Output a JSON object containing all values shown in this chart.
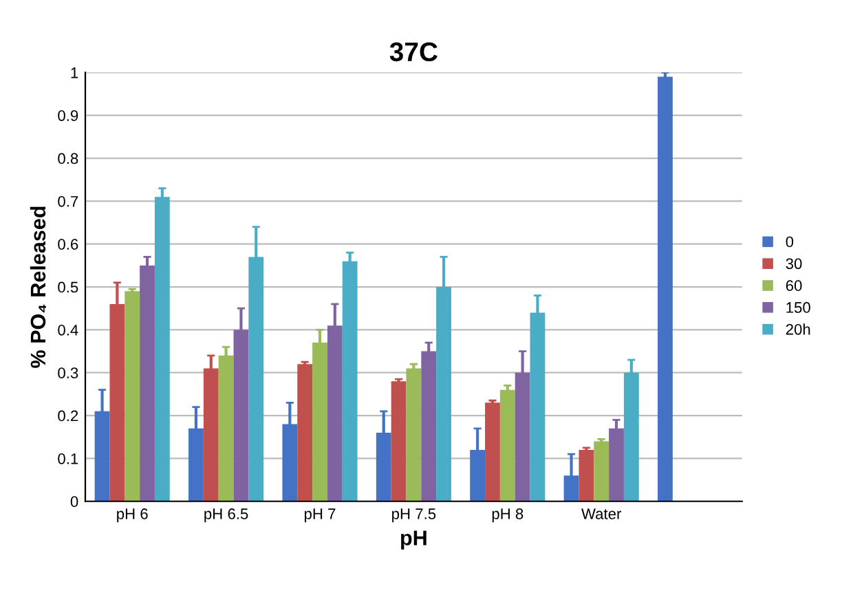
{
  "chart_data": {
    "type": "bar",
    "title": "37C",
    "xlabel": "pH",
    "ylabel": "% PO₄ Released",
    "categories": [
      "pH 6",
      "pH 6.5",
      "pH 7",
      "pH 7.5",
      "pH 8",
      "Water",
      null
    ],
    "series": [
      {
        "name": "0",
        "color": "#4472c4",
        "values": [
          0.21,
          0.17,
          0.18,
          0.16,
          0.12,
          0.06,
          0.99
        ],
        "errors": [
          0.05,
          0.05,
          0.05,
          0.05,
          0.05,
          0.05,
          0.01
        ]
      },
      {
        "name": "30",
        "color": "#c0504d",
        "values": [
          0.46,
          0.31,
          0.32,
          0.28,
          0.23,
          0.12,
          null
        ],
        "errors": [
          0.05,
          0.03,
          0.005,
          0.005,
          0.005,
          0.005,
          null
        ]
      },
      {
        "name": "60",
        "color": "#9bbb59",
        "values": [
          0.49,
          0.34,
          0.37,
          0.31,
          0.26,
          0.14,
          null
        ],
        "errors": [
          0.005,
          0.02,
          0.03,
          0.01,
          0.01,
          0.005,
          null
        ]
      },
      {
        "name": "150",
        "color": "#8064a2",
        "values": [
          0.55,
          0.4,
          0.41,
          0.35,
          0.3,
          0.17,
          null
        ],
        "errors": [
          0.02,
          0.05,
          0.05,
          0.02,
          0.05,
          0.02,
          null
        ]
      },
      {
        "name": "20h",
        "color": "#4bacc6",
        "values": [
          0.71,
          0.57,
          0.56,
          0.5,
          0.44,
          0.3,
          null
        ],
        "errors": [
          0.02,
          0.07,
          0.02,
          0.07,
          0.04,
          0.03,
          null
        ]
      }
    ],
    "ylim": [
      0,
      1
    ],
    "yticks": [
      0,
      0.1,
      0.2,
      0.3,
      0.4,
      0.5,
      0.6,
      0.7,
      0.8,
      0.9,
      1
    ],
    "grid": "y",
    "legend": "right"
  }
}
